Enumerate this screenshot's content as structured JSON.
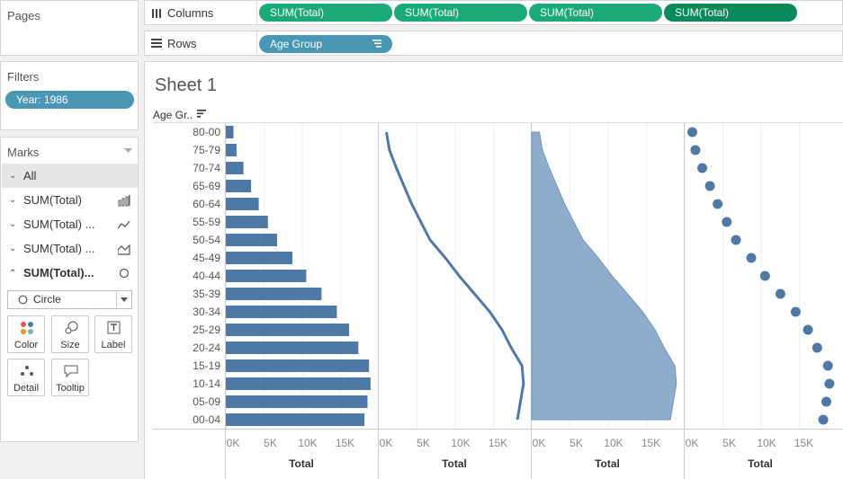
{
  "pages": {
    "title": "Pages"
  },
  "filters": {
    "title": "Filters",
    "pills": [
      {
        "label": "Year: 1986"
      }
    ]
  },
  "shelves": {
    "columns": {
      "label": "Columns",
      "pills": [
        "SUM(Total)",
        "SUM(Total)",
        "SUM(Total)",
        "SUM(Total)"
      ]
    },
    "rows": {
      "label": "Rows",
      "pills": [
        "Age Group"
      ]
    }
  },
  "marks": {
    "title": "Marks",
    "rows": [
      {
        "label": "All",
        "icon": "none"
      },
      {
        "label": "SUM(Total)",
        "icon": "bar-chart-icon"
      },
      {
        "label": "SUM(Total) ...",
        "icon": "line-chart-icon"
      },
      {
        "label": "SUM(Total) ...",
        "icon": "area-chart-icon"
      },
      {
        "label": "SUM(Total)...",
        "icon": "circle-mark-icon"
      }
    ],
    "mark_type": "Circle",
    "cards": [
      {
        "label": "Color",
        "icon": "color-icon"
      },
      {
        "label": "Size",
        "icon": "size-icon"
      },
      {
        "label": "Label",
        "icon": "label-icon"
      },
      {
        "label": "Detail",
        "icon": "detail-icon"
      },
      {
        "label": "Tooltip",
        "icon": "tooltip-icon"
      }
    ]
  },
  "sheet": {
    "title": "Sheet 1",
    "row_header": "Age Gr.."
  },
  "colors": {
    "mark": "#4e79a7",
    "area": "#8eaccc",
    "pill_green": "#1aaa76",
    "pill_blue": "#4a97b5"
  },
  "chart_data": {
    "type": "bar",
    "categories": [
      "80-00",
      "75-79",
      "70-74",
      "65-69",
      "60-64",
      "55-59",
      "50-54",
      "45-49",
      "40-44",
      "35-39",
      "30-34",
      "25-29",
      "20-24",
      "15-19",
      "10-14",
      "05-09",
      "00-04"
    ],
    "series": [
      {
        "values": [
          1000,
          1400,
          2300,
          3300,
          4300,
          5500,
          6700,
          8700,
          10500,
          12500,
          14500,
          16100,
          17300,
          18700,
          18900,
          18500,
          18100
        ]
      }
    ],
    "panes": [
      "bar",
      "line",
      "area",
      "circle"
    ],
    "xlabel": "Total",
    "xticks": [
      "0K",
      "5K",
      "10K",
      "15K"
    ],
    "xlim": [
      0,
      19500
    ],
    "grid": true
  }
}
